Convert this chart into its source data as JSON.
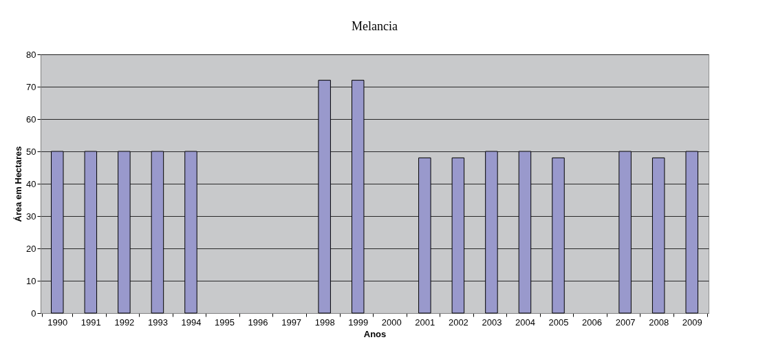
{
  "chart_data": {
    "type": "bar",
    "title": "Melancia",
    "xlabel": "Anos",
    "ylabel": "Área em Hectares",
    "categories": [
      "1990",
      "1991",
      "1992",
      "1993",
      "1994",
      "1995",
      "1996",
      "1997",
      "1998",
      "1999",
      "2000",
      "2001",
      "2002",
      "2003",
      "2004",
      "2005",
      "2006",
      "2007",
      "2008",
      "2009"
    ],
    "values": [
      50,
      50,
      50,
      50,
      50,
      null,
      null,
      null,
      72,
      72,
      null,
      48,
      48,
      50,
      50,
      48,
      null,
      50,
      48,
      50
    ],
    "color": "#9999cc",
    "ylim": [
      0,
      80
    ],
    "yticks": [
      0,
      10,
      20,
      30,
      40,
      50,
      60,
      70,
      80
    ],
    "grid": "y"
  }
}
